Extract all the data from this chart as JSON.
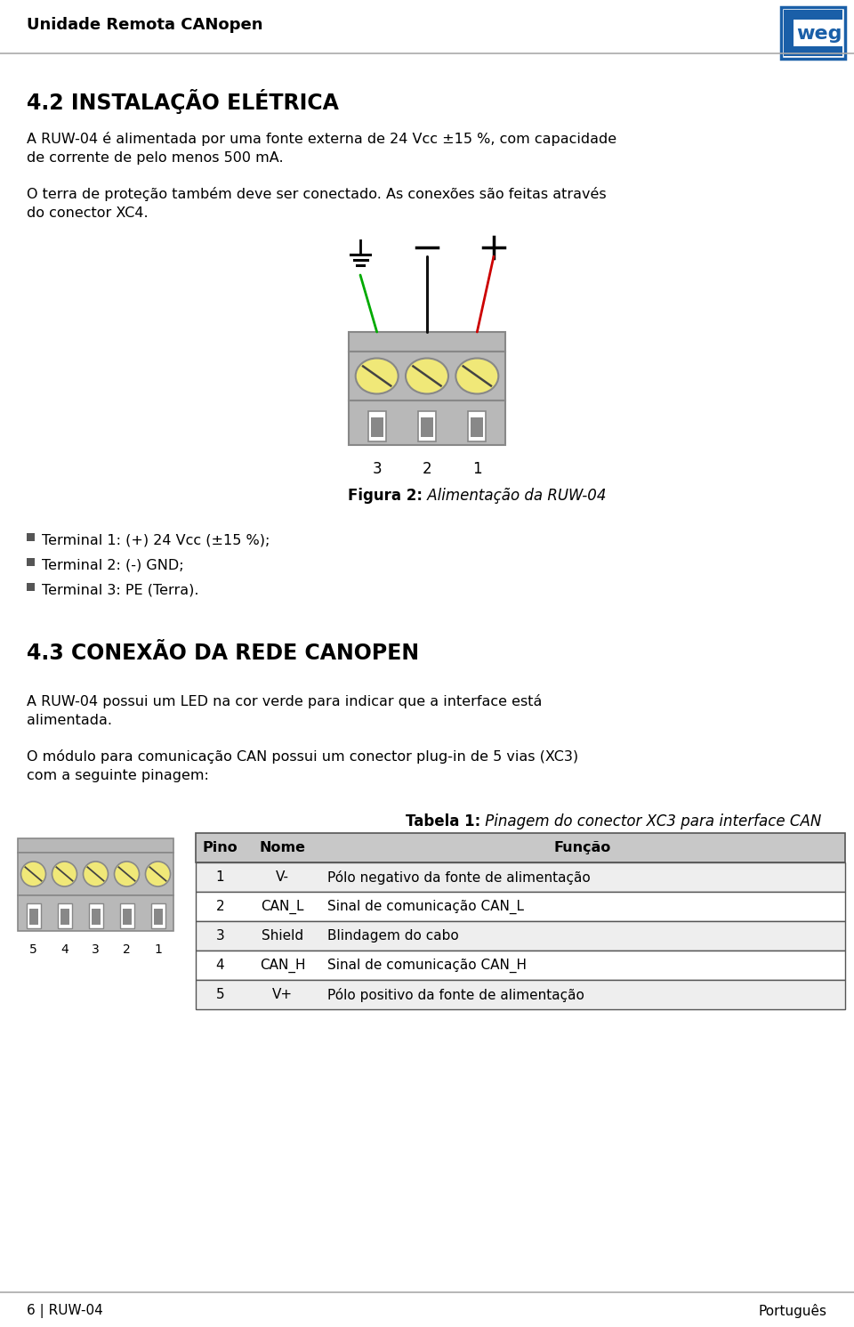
{
  "header_text": "Unidade Remota CANopen",
  "section_title": "4.2 INSTALAÇÃO ELÉTRICA",
  "para1_line1": "A RUW-04 é alimentada por uma fonte externa de 24 Vcc ±15 %, com capacidade",
  "para1_line2": "de corrente de pelo menos 500 mA.",
  "para2_line1": "O terra de proteção também deve ser conectado. As conexões são feitas através",
  "para2_line2": "do conector XC4.",
  "figure_caption_bold": "Figura 2:",
  "figure_caption_italic": " Alimentação da RUW-04",
  "terminal_labels": [
    "3",
    "2",
    "1"
  ],
  "bullets": [
    "Terminal 1: (+) 24 Vcc (±15 %);",
    "Terminal 2: (-) GND;",
    "Terminal 3: PE (Terra)."
  ],
  "section2_title": "4.3 CONEXÃO DA REDE CANOPEN",
  "para3_line1": "A RUW-04 possui um LED na cor verde para indicar que a interface está",
  "para3_line2": "alimentada.",
  "para4_line1": "O módulo para comunicação CAN possui um conector plug-in de 5 vias (XC3)",
  "para4_line2": "com a seguinte pinagem:",
  "table_title_bold": "Tabela 1:",
  "table_title_italic": " Pinagem do conector XC3 para interface CAN",
  "table_headers": [
    "Pino",
    "Nome",
    "Função"
  ],
  "table_rows": [
    [
      "1",
      "V-",
      "Pólo negativo da fonte de alimentação"
    ],
    [
      "2",
      "CAN_L",
      "Sinal de comunicação CAN_L"
    ],
    [
      "3",
      "Shield",
      "Blindagem do cabo"
    ],
    [
      "4",
      "CAN_H",
      "Sinal de comunicação CAN_H"
    ],
    [
      "5",
      "V+",
      "Pólo positivo da fonte de alimentação"
    ]
  ],
  "footer_left": "6 | RUW-04",
  "footer_right": "Português",
  "bg_color": "#ffffff",
  "text_color": "#000000",
  "connector_gray": "#b8b8b8",
  "connector_dark": "#888888",
  "screw_yellow": "#f0e878",
  "wire_green": "#00aa00",
  "wire_black": "#111111",
  "wire_red": "#cc0000",
  "weg_blue": "#1a5fa8",
  "header_line_color": "#aaaaaa",
  "table_header_bg": "#c8c8c8",
  "table_row_alt": "#eeeeee",
  "table_border": "#555555"
}
